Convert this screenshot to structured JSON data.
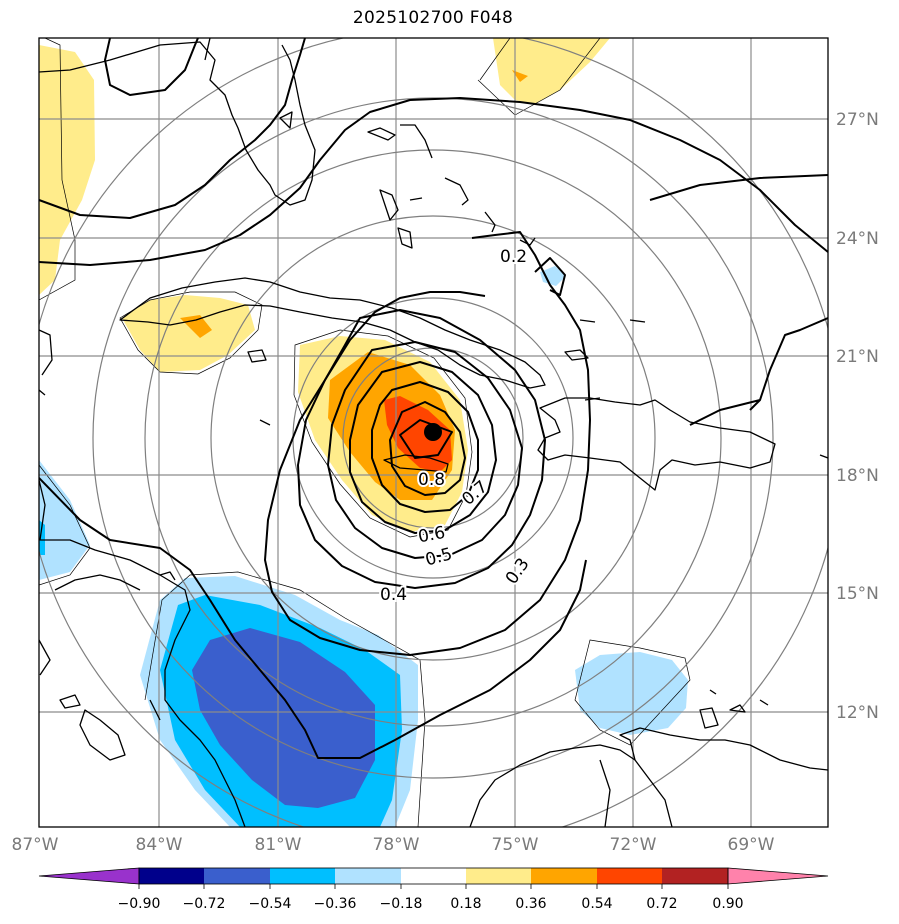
{
  "title": "2025102700 F048",
  "map": {
    "lon_ticks": [
      "87°W",
      "84°W",
      "81°W",
      "78°W",
      "75°W",
      "72°W",
      "69°W"
    ],
    "lat_ticks": [
      "27°N",
      "24°N",
      "21°N",
      "18°N",
      "15°N",
      "12°N"
    ],
    "contour_labels": [
      "0.2",
      "0.3",
      "0.4",
      "0.5",
      "0.6",
      "0.7",
      "0.8"
    ],
    "colors": {
      "grid": "#8c8c8c",
      "tick_label": "#7a7a7a",
      "contour": "#000000"
    }
  },
  "colorbar": {
    "tick_labels": [
      "−0.90",
      "−0.72",
      "−0.54",
      "−0.36",
      "−0.18",
      "0.18",
      "0.36",
      "0.54",
      "0.72",
      "0.90"
    ],
    "colors": [
      "#9932cc",
      "#00008b",
      "#3a5fcd",
      "#00bfff",
      "#b0e2ff",
      "#ffffff",
      "#ffec8b",
      "#ffa500",
      "#ff4500",
      "#b22222",
      "#ff82ab"
    ]
  }
}
